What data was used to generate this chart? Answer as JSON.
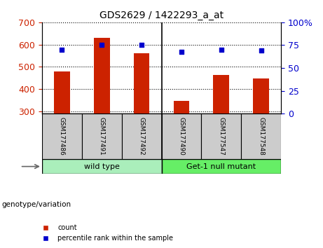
{
  "title": "GDS2629 / 1422293_a_at",
  "samples": [
    "GSM177486",
    "GSM177491",
    "GSM177492",
    "GSM177490",
    "GSM177547",
    "GSM177548"
  ],
  "counts": [
    480,
    630,
    560,
    348,
    463,
    448
  ],
  "percentiles": [
    70,
    75,
    75,
    68,
    70,
    69
  ],
  "ylim_left": [
    290,
    700
  ],
  "ylim_right": [
    0,
    100
  ],
  "yticks_left": [
    300,
    400,
    500,
    600,
    700
  ],
  "yticks_right": [
    0,
    25,
    50,
    75,
    100
  ],
  "bar_color": "#cc2200",
  "dot_color": "#0000cc",
  "group_labels": [
    "wild type",
    "Get-1 null mutant"
  ],
  "group_colors": [
    "#aaeebb",
    "#66ee66"
  ],
  "legend_count": "count",
  "legend_pct": "percentile rank within the sample",
  "genotype_label": "genotype/variation"
}
